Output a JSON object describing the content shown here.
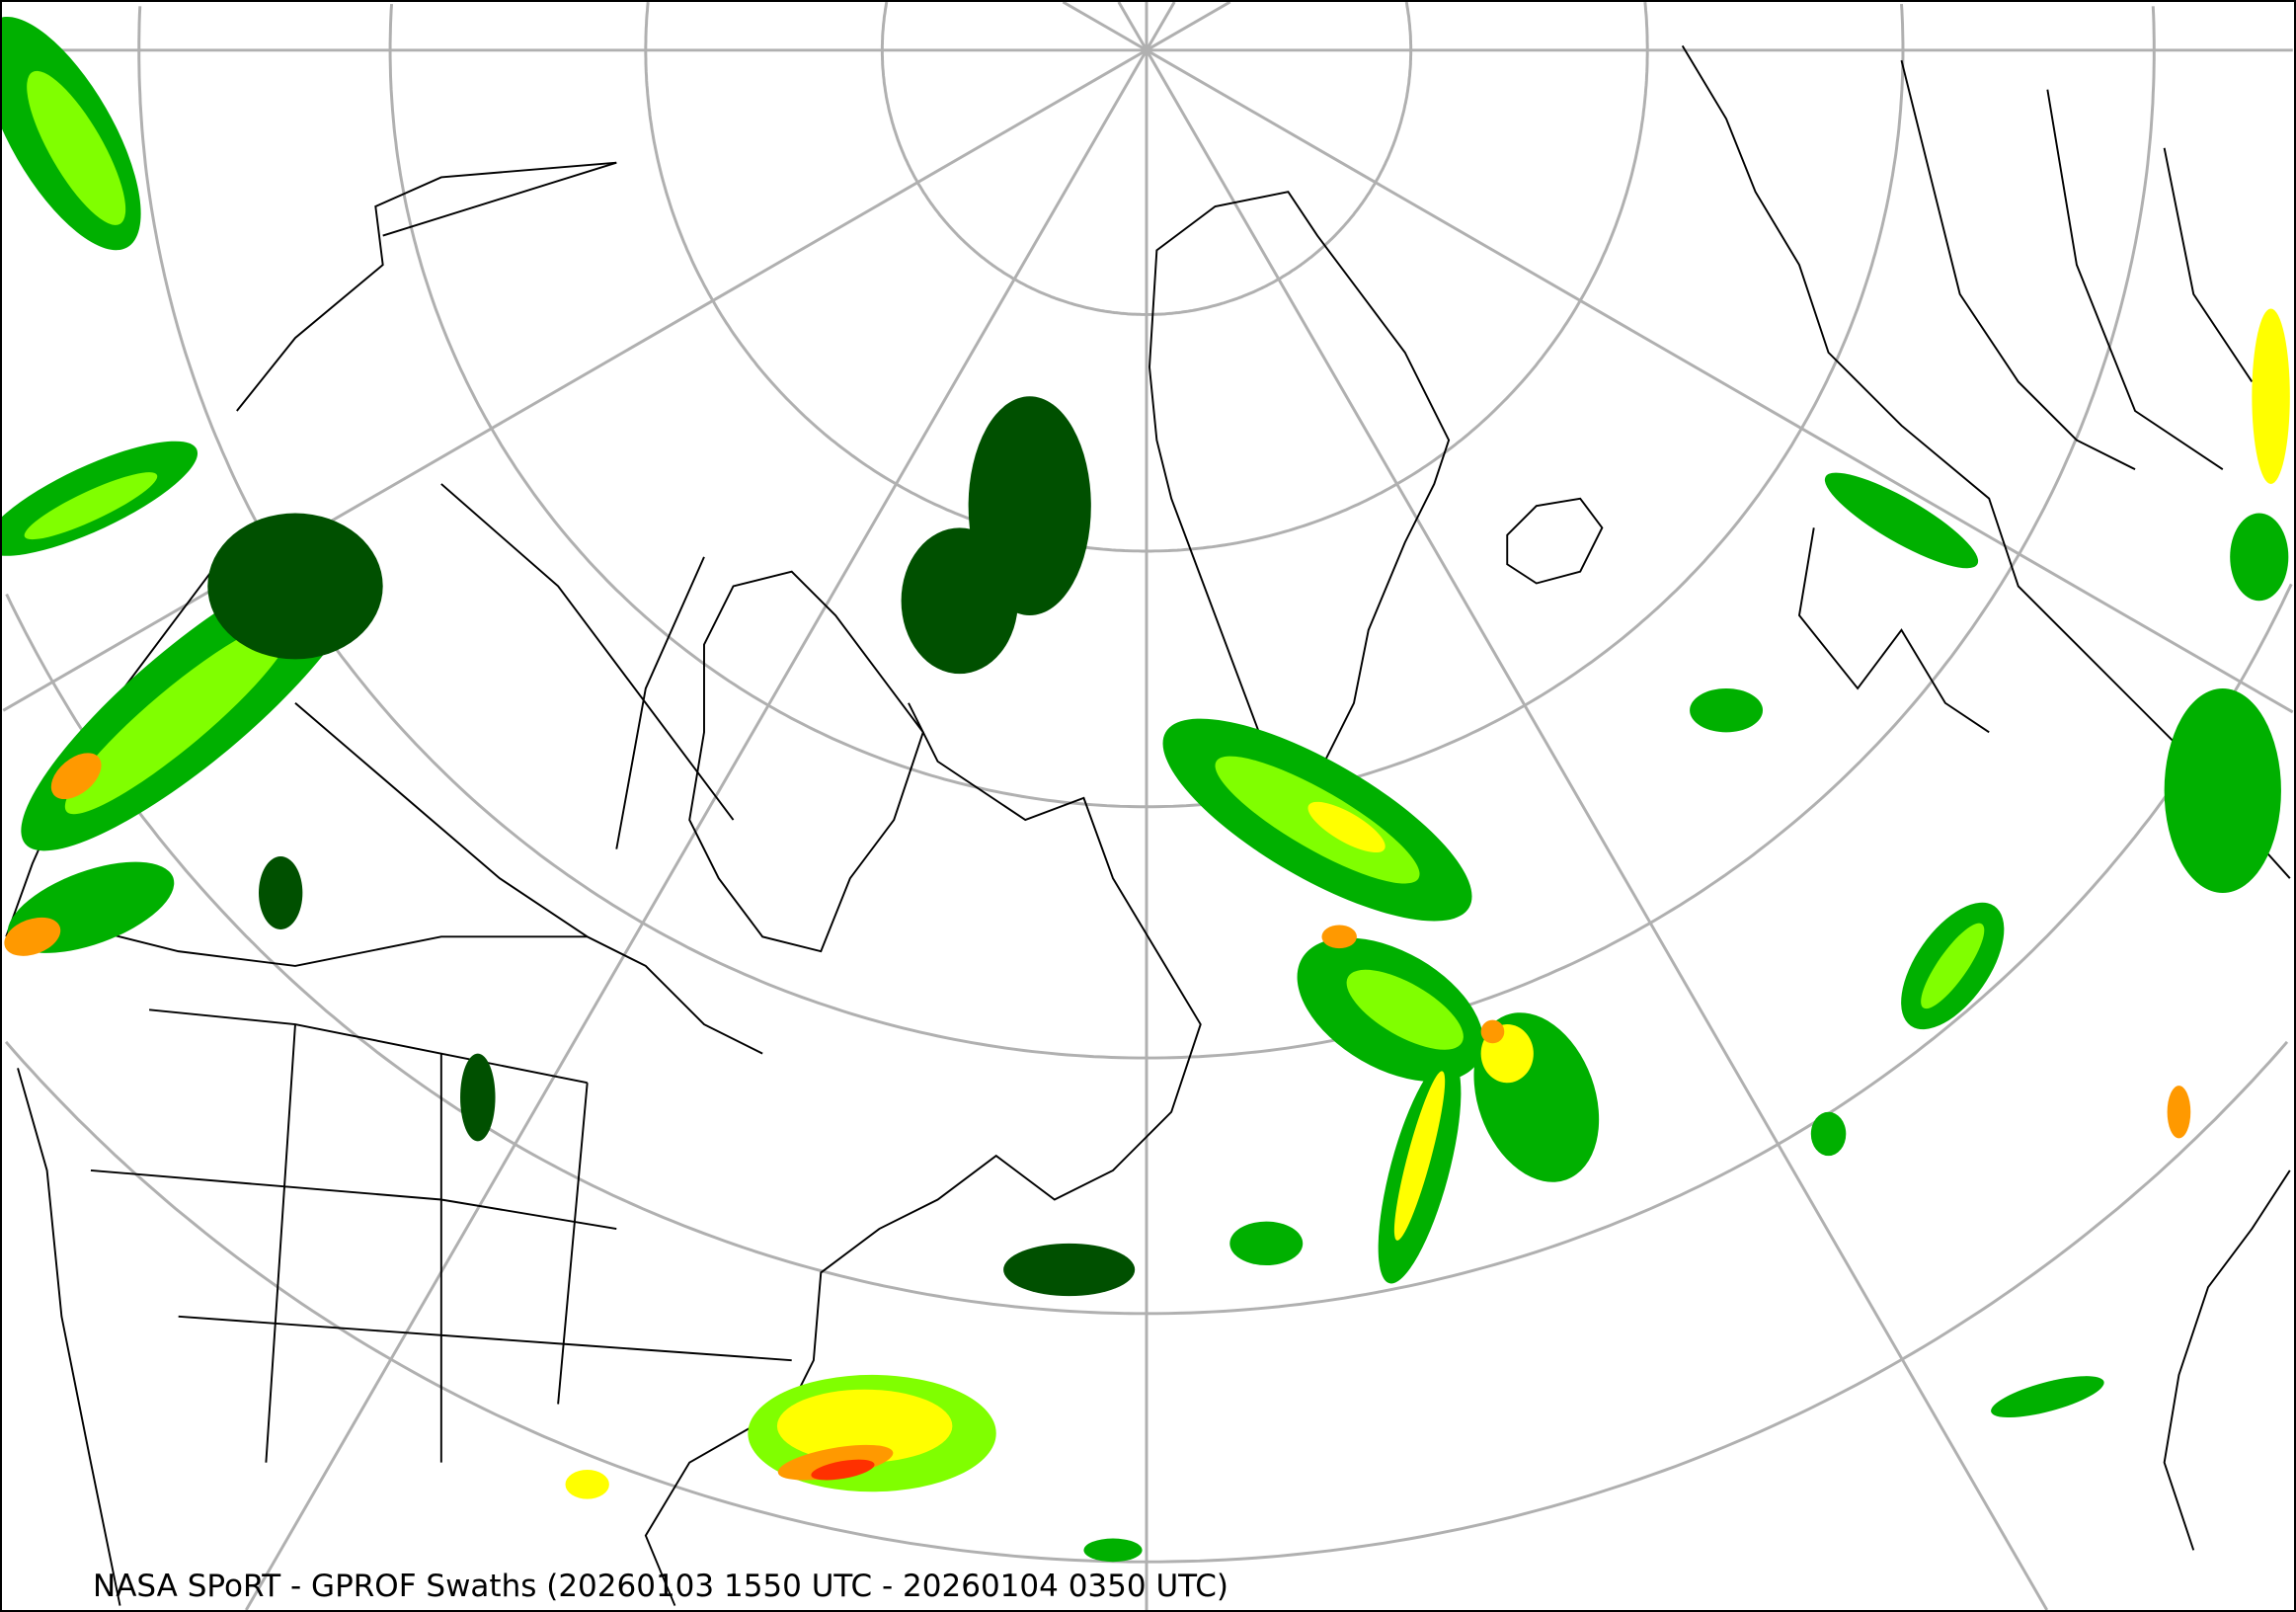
{
  "map": {
    "caption": "NASA SPoRT - GPROF Swaths (20260103 1550 UTC - 20260104 0350 UTC)",
    "projection": "polar stereographic (north)",
    "layers": [
      "graticule",
      "coastlines",
      "political-boundaries",
      "precipitation-swaths"
    ],
    "colors": {
      "graticule": "#b0b0b0",
      "coastline": "#000000",
      "precip_light": "#005000",
      "precip_low": "#00b000",
      "precip_moderate": "#80ff00",
      "precip_medium": "#ffff00",
      "precip_heavy": "#ff9900",
      "precip_very_heavy": "#ff3000"
    }
  }
}
